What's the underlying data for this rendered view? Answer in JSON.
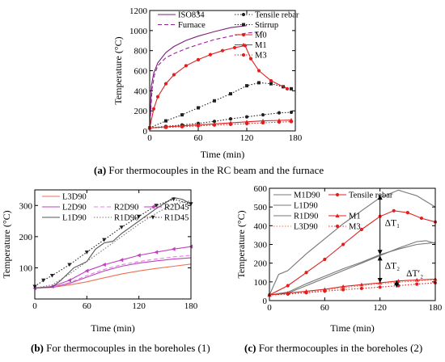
{
  "captions": {
    "a": {
      "label": "(a)",
      "text": "For thermocouples in the RC beam and the furnace"
    },
    "b": {
      "label": "(b)",
      "text": "For thermocouples in the boreholes (1)"
    },
    "c": {
      "label": "(c)",
      "text": "For thermocouples in the boreholes (2)"
    }
  },
  "chart_data": [
    {
      "id": "a",
      "type": "line",
      "xlabel": "Time (min)",
      "ylabel": "Temperature (°C)",
      "xlim": [
        0,
        180
      ],
      "ylim": [
        0,
        1200
      ],
      "xticks": [
        0,
        60,
        120,
        180
      ],
      "yticks": [
        0,
        200,
        400,
        600,
        800,
        1000,
        1200
      ],
      "legend": "top",
      "series": [
        {
          "name": "ISO834",
          "color": "#7b1f7b",
          "style": "solid",
          "marker": "none",
          "x": [
            0,
            2,
            5,
            10,
            20,
            30,
            45,
            60,
            80,
            100,
            120
          ],
          "y": [
            20,
            445,
            576,
            678,
            781,
            842,
            902,
            945,
            990,
            1029,
            1049
          ]
        },
        {
          "name": "Furnace",
          "color": "#9b1fa0",
          "style": "dashed",
          "marker": "none",
          "x": [
            0,
            3,
            6,
            10,
            20,
            30,
            45,
            60,
            80,
            100,
            120,
            140
          ],
          "y": [
            20,
            420,
            560,
            650,
            730,
            770,
            820,
            860,
            910,
            945,
            975,
            990
          ]
        },
        {
          "name": "Tensile rebar",
          "color": "#222222",
          "style": "dotted",
          "marker": "dot",
          "x": [
            0,
            20,
            40,
            60,
            80,
            100,
            120,
            140,
            160,
            175
          ],
          "y": [
            30,
            45,
            60,
            75,
            95,
            120,
            140,
            160,
            180,
            185
          ]
        },
        {
          "name": "Stirrup",
          "color": "#222222",
          "style": "dotted",
          "marker": "square",
          "x": [
            0,
            20,
            40,
            60,
            80,
            100,
            120,
            135,
            150,
            165,
            175
          ],
          "y": [
            30,
            100,
            160,
            230,
            300,
            370,
            450,
            480,
            470,
            440,
            420
          ]
        },
        {
          "name": "M0",
          "color": "#e02020",
          "style": "solid",
          "marker": "dot",
          "x": [
            0,
            5,
            10,
            20,
            30,
            45,
            60,
            75,
            90,
            105,
            118,
            125,
            135,
            150,
            170
          ],
          "y": [
            30,
            220,
            340,
            470,
            560,
            650,
            710,
            760,
            800,
            830,
            850,
            720,
            600,
            500,
            420
          ]
        },
        {
          "name": "M1",
          "color": "#e02020",
          "style": "solid",
          "marker": "triangle",
          "x": [
            0,
            20,
            40,
            60,
            80,
            100,
            120,
            140,
            160,
            175
          ],
          "y": [
            30,
            40,
            50,
            60,
            70,
            80,
            90,
            100,
            105,
            108
          ]
        },
        {
          "name": "M3",
          "color": "#e02020",
          "style": "dotted",
          "marker": "dot",
          "x": [
            0,
            20,
            40,
            60,
            80,
            100,
            120,
            140,
            160,
            175
          ],
          "y": [
            30,
            35,
            42,
            50,
            58,
            65,
            72,
            80,
            88,
            92
          ]
        }
      ]
    },
    {
      "id": "b",
      "type": "line",
      "xlabel": "Time (min)",
      "ylabel": "Temperature (°C)",
      "xlim": [
        0,
        180
      ],
      "ylim": [
        0,
        350
      ],
      "xticks": [
        0,
        60,
        120,
        180
      ],
      "yticks": [
        100,
        200,
        300
      ],
      "legend": "top-left",
      "series": [
        {
          "name": "L3D90",
          "color": "#f07050",
          "style": "solid",
          "marker": "none",
          "x": [
            0,
            20,
            40,
            60,
            80,
            100,
            120,
            140,
            160,
            180
          ],
          "y": [
            35,
            37,
            45,
            55,
            68,
            80,
            90,
            98,
            105,
            112
          ]
        },
        {
          "name": "L2D90",
          "color": "#c040c0",
          "style": "solid",
          "marker": "none",
          "x": [
            0,
            20,
            40,
            60,
            80,
            100,
            120,
            140,
            160,
            180
          ],
          "y": [
            35,
            38,
            50,
            70,
            90,
            105,
            115,
            122,
            128,
            132
          ]
        },
        {
          "name": "R2D90",
          "color": "#e080e0",
          "style": "dashed",
          "marker": "none",
          "x": [
            0,
            20,
            40,
            60,
            80,
            100,
            120,
            140,
            160,
            180
          ],
          "y": [
            35,
            38,
            52,
            75,
            95,
            110,
            120,
            128,
            135,
            140
          ]
        },
        {
          "name": "R2D45",
          "color": "#c040c0",
          "style": "solid",
          "marker": "triangle-left",
          "x": [
            0,
            20,
            40,
            60,
            80,
            100,
            120,
            140,
            160,
            180
          ],
          "y": [
            35,
            40,
            60,
            90,
            110,
            125,
            140,
            150,
            160,
            168
          ]
        },
        {
          "name": "L1D90",
          "color": "#555555",
          "style": "solid",
          "marker": "none",
          "x": [
            0,
            20,
            30,
            45,
            60,
            70,
            80,
            90,
            100,
            120,
            140,
            160,
            170,
            180
          ],
          "y": [
            35,
            38,
            60,
            100,
            120,
            160,
            180,
            185,
            210,
            250,
            290,
            325,
            320,
            305
          ]
        },
        {
          "name": "R1D90",
          "color": "#777777",
          "style": "dotted",
          "marker": "none",
          "x": [
            0,
            20,
            40,
            60,
            80,
            100,
            120,
            140,
            160,
            180
          ],
          "y": [
            35,
            45,
            80,
            120,
            160,
            200,
            240,
            275,
            305,
            315
          ]
        },
        {
          "name": "R1D45",
          "color": "#222222",
          "style": "dotted",
          "marker": "triangle-down",
          "x": [
            0,
            10,
            20,
            40,
            60,
            80,
            100,
            120,
            140,
            160,
            180
          ],
          "y": [
            40,
            60,
            75,
            110,
            150,
            190,
            230,
            265,
            300,
            320,
            305
          ]
        }
      ]
    },
    {
      "id": "c",
      "type": "line",
      "xlabel": "Time (min)",
      "ylabel": "Temperature (°C)",
      "xlim": [
        0,
        180
      ],
      "ylim": [
        0,
        600
      ],
      "xticks": [
        0,
        60,
        120,
        180
      ],
      "yticks": [
        0,
        100,
        200,
        300,
        400,
        500,
        600
      ],
      "legend": "top",
      "annotations": [
        "ΔT₁",
        "ΔT₂",
        "ΔT′₂"
      ],
      "series": [
        {
          "name": "M1D90",
          "color": "#777777",
          "style": "solid",
          "marker": "none",
          "x": [
            0,
            10,
            20,
            40,
            60,
            80,
            100,
            120,
            140,
            160,
            180
          ],
          "y": [
            30,
            140,
            160,
            250,
            330,
            410,
            480,
            550,
            590,
            560,
            500
          ]
        },
        {
          "name": "Tensile rebar",
          "color": "#e02020",
          "style": "solid",
          "marker": "dot",
          "x": [
            0,
            20,
            40,
            60,
            80,
            100,
            120,
            135,
            150,
            165,
            180
          ],
          "y": [
            30,
            80,
            150,
            220,
            300,
            380,
            450,
            480,
            470,
            440,
            420
          ]
        },
        {
          "name": "L1D90",
          "color": "#777777",
          "style": "solid",
          "marker": "none",
          "x": [
            0,
            20,
            40,
            60,
            80,
            100,
            120,
            140,
            160,
            170,
            180
          ],
          "y": [
            30,
            40,
            80,
            120,
            160,
            200,
            240,
            280,
            315,
            320,
            305
          ]
        },
        {
          "name": "R1D90",
          "color": "#777777",
          "style": "solid",
          "marker": "none",
          "x": [
            0,
            20,
            40,
            60,
            80,
            100,
            120,
            140,
            160,
            180
          ],
          "y": [
            30,
            45,
            90,
            130,
            170,
            205,
            245,
            275,
            300,
            310
          ]
        },
        {
          "name": "M1",
          "color": "#e02020",
          "style": "solid",
          "marker": "triangle",
          "x": [
            0,
            20,
            40,
            60,
            80,
            100,
            120,
            140,
            160,
            180
          ],
          "y": [
            30,
            40,
            50,
            60,
            75,
            85,
            95,
            105,
            110,
            115
          ]
        },
        {
          "name": "L3D90",
          "color": "#f07050",
          "style": "dotted",
          "marker": "none",
          "x": [
            0,
            20,
            40,
            60,
            80,
            100,
            120,
            140,
            160,
            180
          ],
          "y": [
            30,
            35,
            45,
            55,
            68,
            80,
            90,
            98,
            105,
            112
          ]
        },
        {
          "name": "M3",
          "color": "#e02020",
          "style": "dotted",
          "marker": "dot",
          "x": [
            0,
            20,
            40,
            60,
            80,
            100,
            120,
            140,
            160,
            180
          ],
          "y": [
            30,
            35,
            42,
            50,
            58,
            65,
            72,
            80,
            88,
            95
          ]
        }
      ]
    }
  ]
}
